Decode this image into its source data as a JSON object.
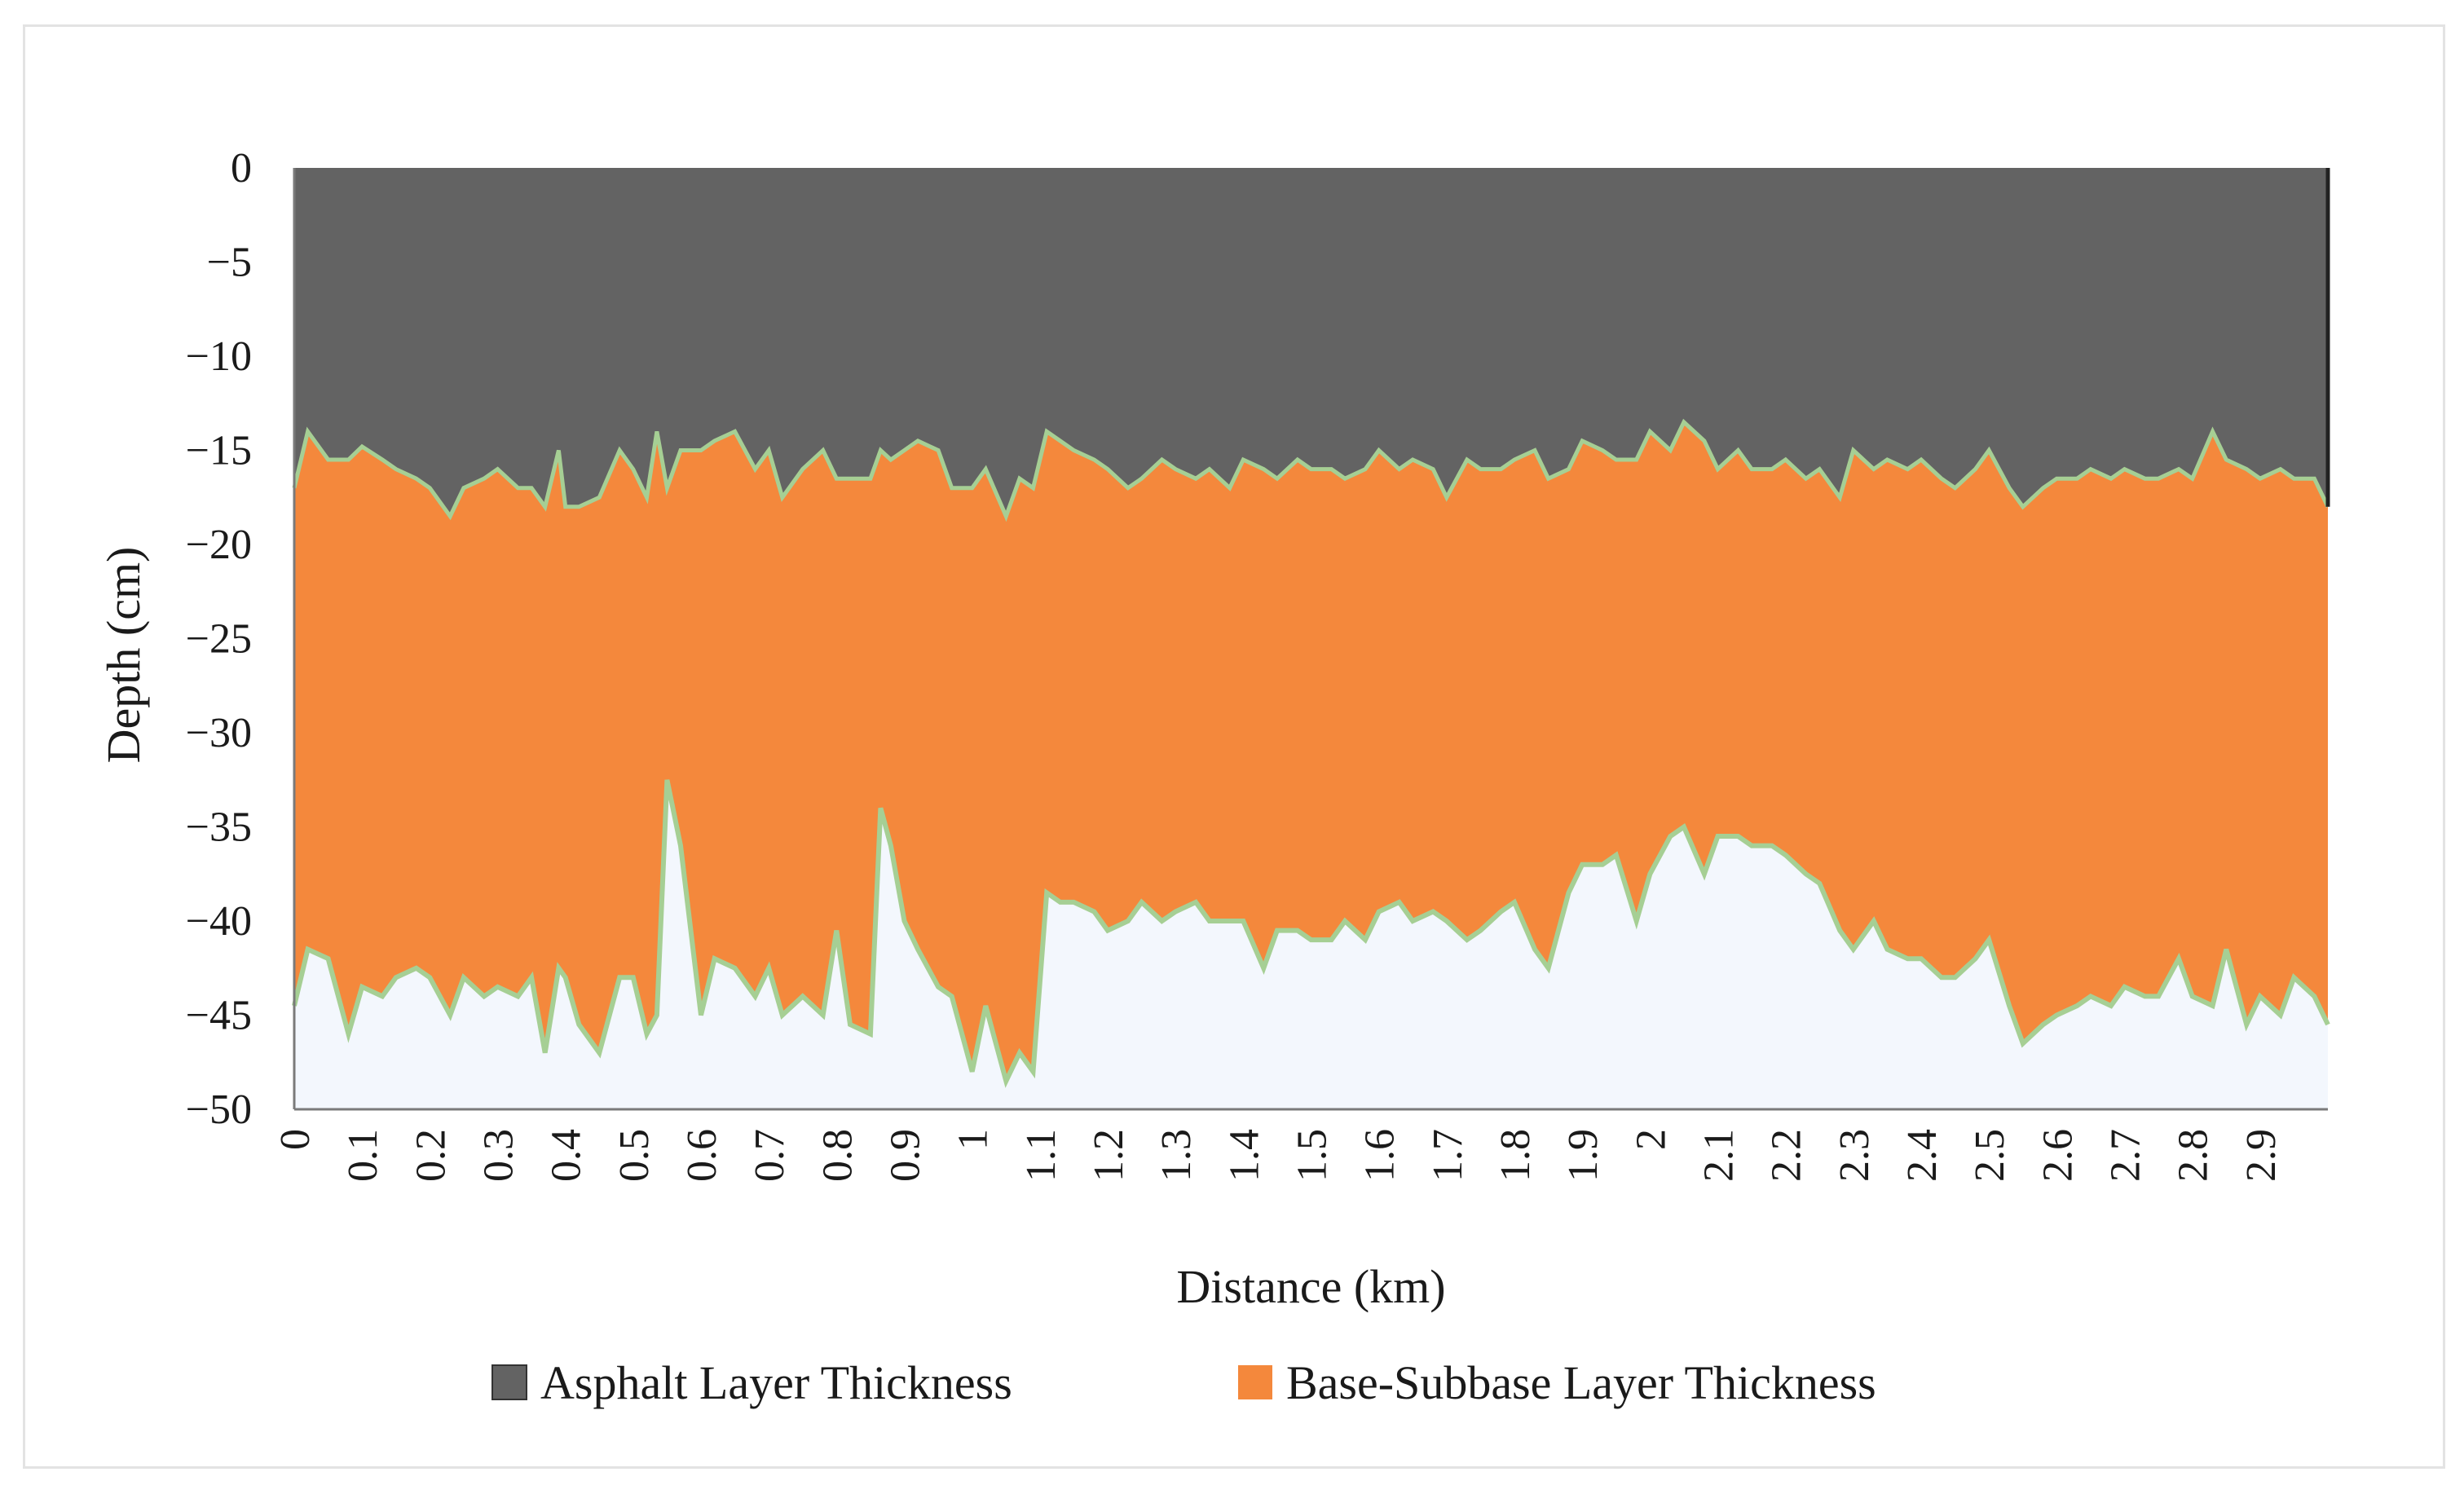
{
  "chart_data": {
    "type": "area",
    "xlabel": "Distance (km)",
    "ylabel": "Depth (cm)",
    "xlim": [
      0,
      3.0
    ],
    "ylim": [
      -50,
      0
    ],
    "x_ticks": [
      "0",
      "0.1",
      "0.2",
      "0.3",
      "0.4",
      "0.5",
      "0.6",
      "0.7",
      "0.8",
      "0.9",
      "1",
      "1.1",
      "1.2",
      "1.3",
      "1.4",
      "1.5",
      "1.6",
      "1.7",
      "1.8",
      "1.9",
      "2",
      "2.1",
      "2.2",
      "2.3",
      "2.4",
      "2.5",
      "2.6",
      "2.7",
      "2.8",
      "2.9"
    ],
    "y_ticks": [
      "0",
      "−5",
      "−10",
      "−15",
      "−20",
      "−25",
      "−30",
      "−35",
      "−40",
      "−45",
      "−50"
    ],
    "legend_position": "bottom",
    "x": [
      0,
      0.02,
      0.05,
      0.08,
      0.1,
      0.13,
      0.15,
      0.18,
      0.2,
      0.23,
      0.25,
      0.28,
      0.3,
      0.33,
      0.35,
      0.37,
      0.39,
      0.4,
      0.42,
      0.45,
      0.48,
      0.5,
      0.52,
      0.535,
      0.55,
      0.57,
      0.6,
      0.62,
      0.65,
      0.68,
      0.7,
      0.72,
      0.75,
      0.78,
      0.8,
      0.82,
      0.85,
      0.865,
      0.88,
      0.9,
      0.92,
      0.95,
      0.97,
      1.0,
      1.02,
      1.05,
      1.07,
      1.09,
      1.11,
      1.13,
      1.15,
      1.18,
      1.2,
      1.23,
      1.25,
      1.28,
      1.3,
      1.33,
      1.35,
      1.38,
      1.4,
      1.43,
      1.45,
      1.48,
      1.5,
      1.53,
      1.55,
      1.58,
      1.6,
      1.63,
      1.65,
      1.68,
      1.7,
      1.73,
      1.75,
      1.78,
      1.8,
      1.83,
      1.85,
      1.88,
      1.9,
      1.93,
      1.95,
      1.98,
      2.0,
      2.03,
      2.05,
      2.08,
      2.1,
      2.13,
      2.15,
      2.18,
      2.2,
      2.23,
      2.25,
      2.28,
      2.3,
      2.33,
      2.35,
      2.38,
      2.4,
      2.43,
      2.45,
      2.48,
      2.5,
      2.53,
      2.55,
      2.58,
      2.6,
      2.63,
      2.65,
      2.68,
      2.7,
      2.73,
      2.75,
      2.78,
      2.8,
      2.83,
      2.85,
      2.88,
      2.9,
      2.93,
      2.95,
      2.98,
      3.0
    ],
    "series": [
      {
        "name": "Asphalt Layer Thickness",
        "color": "#636363",
        "values": [
          -17,
          -14,
          -15.5,
          -15.5,
          -14.8,
          -15.5,
          -16,
          -16.5,
          -17,
          -18.5,
          -17,
          -16.5,
          -16,
          -17,
          -17,
          -18,
          -15,
          -18,
          -18,
          -17.5,
          -15,
          -16,
          -17.5,
          -14,
          -17,
          -15,
          -15,
          -14.5,
          -14,
          -16,
          -15,
          -17.5,
          -16,
          -15,
          -16.5,
          -16.5,
          -16.5,
          -15,
          -15.5,
          -15,
          -14.5,
          -15,
          -17,
          -17,
          -16,
          -18.5,
          -16.5,
          -17,
          -14,
          -14.5,
          -15,
          -15.5,
          -16,
          -17,
          -16.5,
          -15.5,
          -16,
          -16.5,
          -16,
          -17,
          -15.5,
          -16,
          -16.5,
          -15.5,
          -16,
          -16,
          -16.5,
          -16,
          -15,
          -16,
          -15.5,
          -16,
          -17.5,
          -15.5,
          -16,
          -16,
          -15.5,
          -15,
          -16.5,
          -16,
          -14.5,
          -15,
          -15.5,
          -15.5,
          -14,
          -15,
          -13.5,
          -14.5,
          -16,
          -15,
          -16,
          -16,
          -15.5,
          -16.5,
          -16,
          -17.5,
          -15,
          -16,
          -15.5,
          -16,
          -15.5,
          -16.5,
          -17,
          -16,
          -15,
          -17,
          -18,
          -17,
          -16.5,
          -16.5,
          -16,
          -16.5,
          -16,
          -16.5,
          -16.5,
          -16,
          -16.5,
          -14,
          -15.5,
          -16,
          -16.5,
          -16,
          -16.5,
          -16.5,
          -18
        ]
      },
      {
        "name": "Base-Subbase Layer Thickness",
        "color": "#f4883c",
        "values": [
          -44.5,
          -41.5,
          -42,
          -46,
          -43.5,
          -44,
          -43,
          -42.5,
          -43,
          -45,
          -43,
          -44,
          -43.5,
          -44,
          -43,
          -47,
          -42.5,
          -43,
          -45.5,
          -47,
          -43,
          -43,
          -46,
          -45,
          -32.5,
          -36,
          -45,
          -42,
          -42.5,
          -44,
          -42.5,
          -45,
          -44,
          -45,
          -40.5,
          -45.5,
          -46,
          -34,
          -36,
          -40,
          -41.5,
          -43.5,
          -44,
          -48,
          -44.5,
          -48.5,
          -47,
          -48,
          -38.5,
          -39,
          -39,
          -39.5,
          -40.5,
          -40,
          -39,
          -40,
          -39.5,
          -39,
          -40,
          -40,
          -40,
          -42.5,
          -40.5,
          -40.5,
          -41,
          -41,
          -40,
          -41,
          -39.5,
          -39,
          -40,
          -39.5,
          -40,
          -41,
          -40.5,
          -39.5,
          -39,
          -41.5,
          -42.5,
          -38.5,
          -37,
          -37,
          -36.5,
          -40,
          -37.5,
          -35.5,
          -35,
          -37.5,
          -35.5,
          -35.5,
          -36,
          -36,
          -36.5,
          -37.5,
          -38,
          -40.5,
          -41.5,
          -40,
          -41.5,
          -42,
          -42,
          -43,
          -43,
          -42,
          -41,
          -44.5,
          -46.5,
          -45.5,
          -45,
          -44.5,
          -44,
          -44.5,
          -43.5,
          -44,
          -44,
          -42,
          -44,
          -44.5,
          -41.5,
          -45.5,
          -44,
          -45,
          -43,
          -44,
          -45.5
        ]
      }
    ]
  },
  "legend": {
    "items": [
      {
        "label": "Asphalt Layer Thickness",
        "color": "#636363"
      },
      {
        "label": "Base-Subbase Layer Thickness",
        "color": "#f4883c"
      }
    ]
  },
  "colors": {
    "below_area": "#f3f7fd",
    "interface_line": "#a6cf94",
    "axis": "#7a7a7a"
  }
}
